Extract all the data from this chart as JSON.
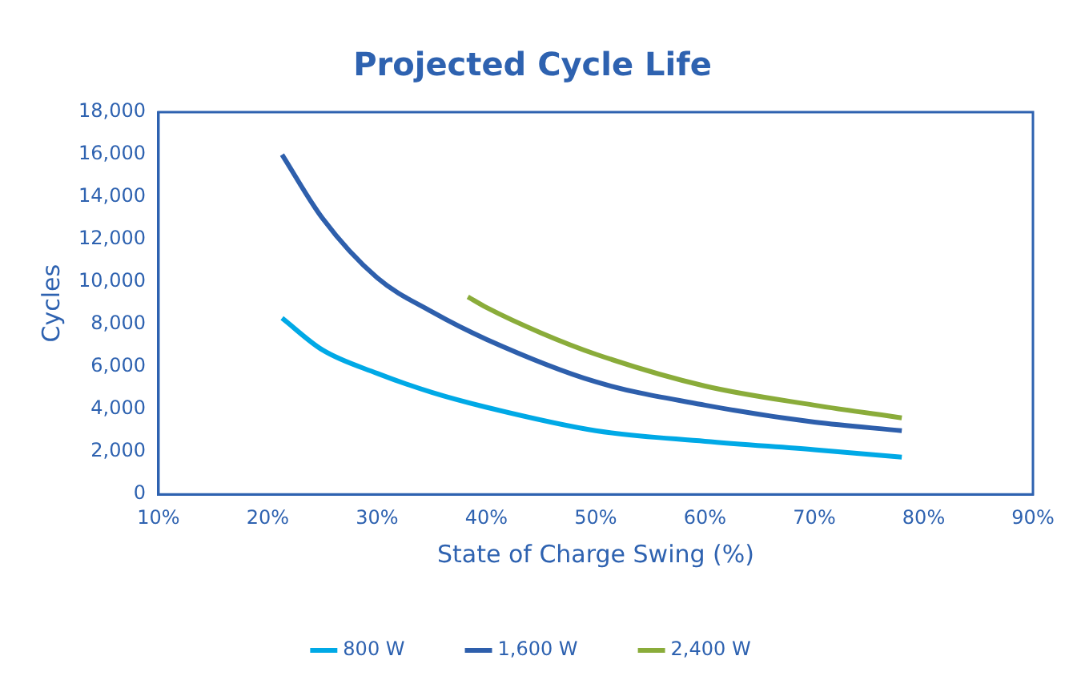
{
  "chart_data": {
    "type": "line",
    "title": "Projected Cycle Life",
    "xlabel": "State of Charge Swing (%)",
    "ylabel": "Cycles",
    "xlim": [
      10,
      90
    ],
    "xticks": [
      {
        "value": 10,
        "label": "10%"
      },
      {
        "value": 20,
        "label": "20%"
      },
      {
        "value": 30,
        "label": "30%"
      },
      {
        "value": 40,
        "label": "40%"
      },
      {
        "value": 50,
        "label": "50%"
      },
      {
        "value": 60,
        "label": "60%"
      },
      {
        "value": 70,
        "label": "70%"
      },
      {
        "value": 80,
        "label": "80%"
      },
      {
        "value": 90,
        "label": "90%"
      }
    ],
    "ylim": [
      0,
      18000
    ],
    "yticks": [
      0,
      {
        "value": 2000,
        "label": "2,000"
      },
      {
        "value": 4000,
        "label": "4,000"
      },
      {
        "value": 6000,
        "label": "6,000"
      },
      {
        "value": 8000,
        "label": "8,000"
      },
      {
        "value": 10000,
        "label": "10,000"
      },
      {
        "value": 12000,
        "label": "12,000"
      },
      {
        "value": 14000,
        "label": "14,000"
      },
      {
        "value": 16000,
        "label": "16,000"
      },
      {
        "value": 18000,
        "label": "18,000"
      }
    ],
    "grid": false,
    "legend": "bottom",
    "marker": "none",
    "line_style": "solid",
    "series": [
      {
        "name": "800 W",
        "color": "#00a9e6",
        "x": [
          21.3,
          25,
          30,
          35,
          40,
          50,
          60,
          70,
          78
        ],
        "values": [
          8300,
          6800,
          5700,
          4800,
          4100,
          3000,
          2500,
          2100,
          1750
        ]
      },
      {
        "name": "1,600 W",
        "color": "#2e5fac",
        "x": [
          21.3,
          25,
          30,
          35,
          40,
          50,
          60,
          70,
          78
        ],
        "values": [
          16000,
          13000,
          10200,
          8600,
          7300,
          5300,
          4200,
          3400,
          3000
        ]
      },
      {
        "name": "2,400 W",
        "color": "#8aac3a",
        "x": [
          38.3,
          40,
          45,
          50,
          60,
          70,
          78
        ],
        "values": [
          9300,
          8800,
          7600,
          6600,
          5100,
          4200,
          3600
        ]
      }
    ]
  }
}
